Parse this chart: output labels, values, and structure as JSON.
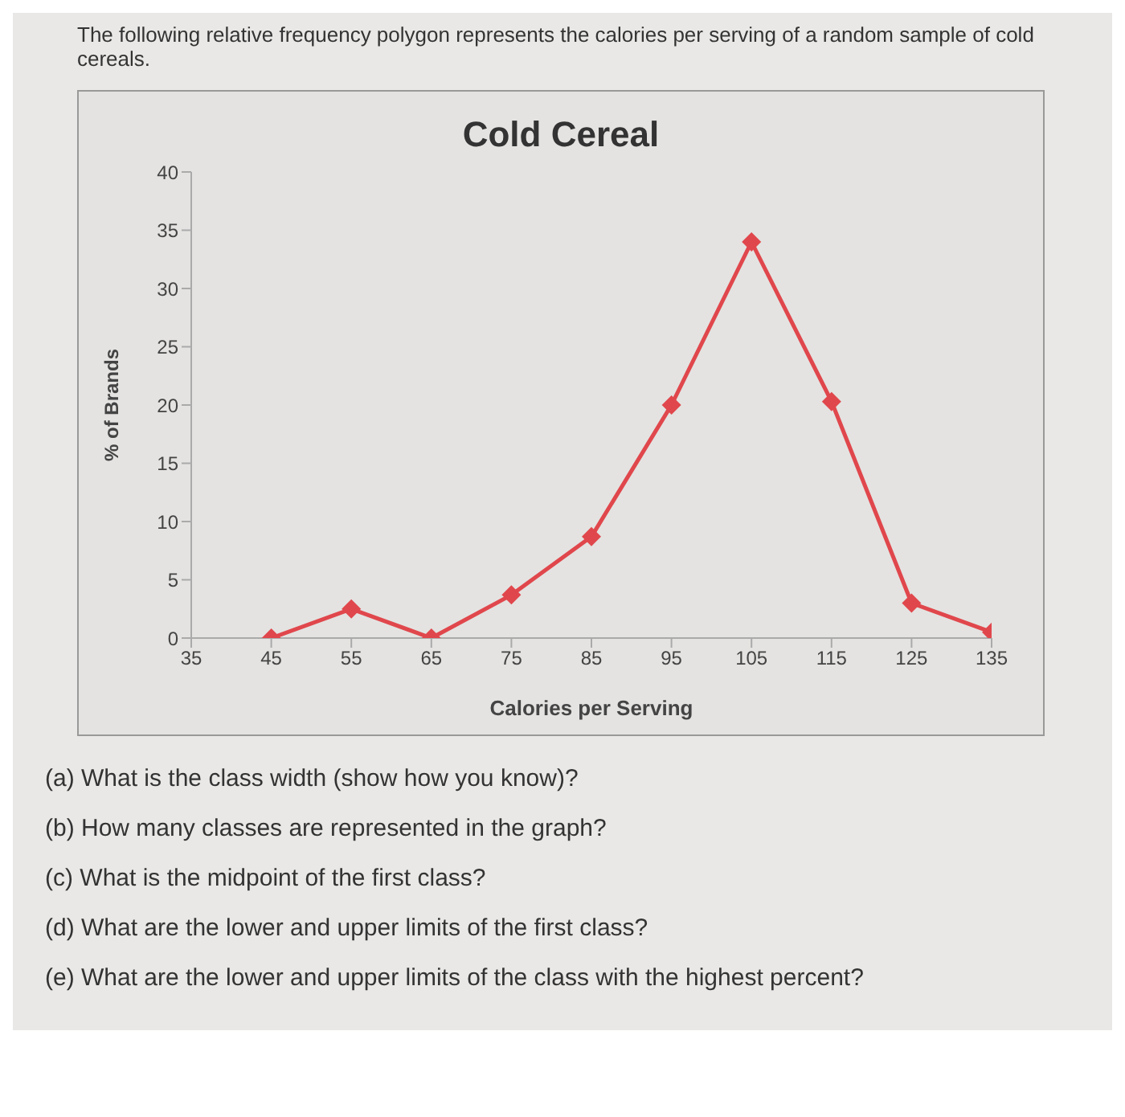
{
  "chart_data": {
    "type": "line",
    "title": "Cold Cereal",
    "xlabel": "Calories per Serving",
    "ylabel": "% of Brands",
    "annotations": [
      "The following relative frequency polygon represents the calories per serving of a random sample of cold cereals.",
      "(a) What is the class width (show how you know)?",
      "(b) How many classes are represented in the graph?",
      "(c) What is the midpoint of the first class?",
      "(d) What are the lower and upper limits of the first class?",
      "(e) What are the lower and upper limits of the class with the highest percent?"
    ],
    "x": [
      45,
      55,
      65,
      75,
      85,
      95,
      105,
      115,
      125,
      135
    ],
    "series": [
      {
        "color": "#e0474c",
        "values": [
          0,
          2.5,
          0,
          3.7,
          8.7,
          20,
          34,
          20.3,
          3,
          0.5
        ]
      }
    ],
    "xlim": [
      35,
      135
    ],
    "xticks": [
      35,
      45,
      55,
      65,
      75,
      85,
      95,
      105,
      115,
      125,
      135
    ],
    "ylim": [
      0,
      40
    ],
    "yticks": [
      0,
      5,
      10,
      15,
      20,
      25,
      30,
      35,
      40
    ],
    "grid": false,
    "legend": false,
    "marker": "diamond"
  }
}
